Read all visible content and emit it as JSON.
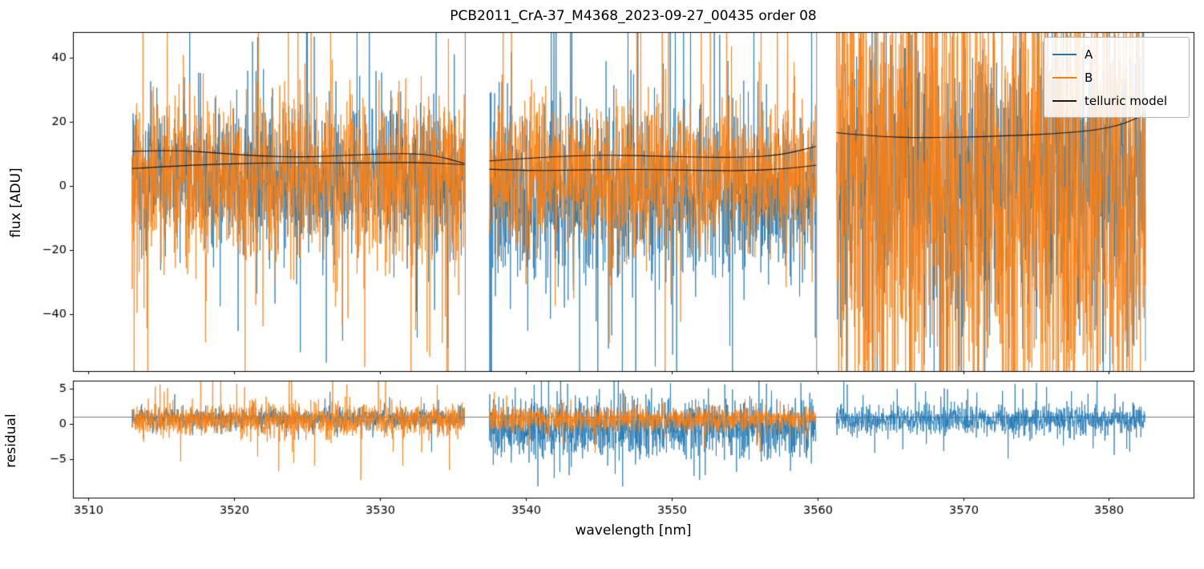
{
  "chart_data": {
    "type": "line",
    "title": "PCB2011_CrA-37_M4368_2023-09-27_00435  order 08",
    "xlabel": "wavelength [nm]",
    "xlim": [
      3508.95,
      3585.8
    ],
    "xticks": [
      3510,
      3520,
      3530,
      3540,
      3550,
      3560,
      3570,
      3580
    ],
    "legend": {
      "position": "upper right",
      "entries": [
        "A",
        "B",
        "telluric model"
      ]
    },
    "series": [
      {
        "name": "A",
        "color": "#1f77b4"
      },
      {
        "name": "B",
        "color": "#ff7f0e"
      },
      {
        "name": "telluric model",
        "color": "#1a1a1a"
      }
    ],
    "top_panel": {
      "ylabel": "flux [ADU]",
      "ylim": [
        -57.8,
        48
      ],
      "yticks": [
        -40,
        -20,
        0,
        20,
        40
      ],
      "edge_lines": [
        3535.85,
        3559.95
      ],
      "edge_line_color": "#808080",
      "segments": [
        {
          "x0": 3513.0,
          "x1": 3535.8,
          "A": {
            "base": 2.5,
            "std": 11.0,
            "tail_p": 0.05,
            "tail_mult": 3.0
          },
          "B": {
            "base": 1.5,
            "std": 13.0,
            "tail_p": 0.06,
            "tail_mult": 3.2
          },
          "telluric": [
            [
              [
                3513,
                10.8
              ],
              [
                3516,
                11.2
              ],
              [
                3519,
                10.2
              ],
              [
                3522,
                9.2
              ],
              [
                3525,
                9.0
              ],
              [
                3528,
                9.6
              ],
              [
                3531,
                10.1
              ],
              [
                3533.5,
                9.9
              ],
              [
                3535.8,
                7.0
              ]
            ],
            [
              [
                3513,
                5.4
              ],
              [
                3516,
                6.2
              ],
              [
                3519,
                6.8
              ],
              [
                3522,
                7.1
              ],
              [
                3525,
                7.2
              ],
              [
                3528,
                7.1
              ],
              [
                3531,
                7.3
              ],
              [
                3533.5,
                7.2
              ],
              [
                3535.8,
                6.6
              ]
            ]
          ]
        },
        {
          "x0": 3537.5,
          "x1": 3559.9,
          "A": {
            "base": -3.0,
            "std": 13.0,
            "tail_p": 0.06,
            "tail_mult": 3.0
          },
          "B": {
            "base": 3.0,
            "std": 11.5,
            "tail_p": 0.05,
            "tail_mult": 3.2
          },
          "telluric": [
            [
              [
                3537.5,
                7.8
              ],
              [
                3540,
                8.6
              ],
              [
                3543,
                9.4
              ],
              [
                3546,
                9.6
              ],
              [
                3549,
                9.3
              ],
              [
                3552,
                8.9
              ],
              [
                3555,
                8.9
              ],
              [
                3557.5,
                9.6
              ],
              [
                3559.9,
                12.3
              ]
            ],
            [
              [
                3537.5,
                5.2
              ],
              [
                3540,
                4.7
              ],
              [
                3543,
                4.9
              ],
              [
                3546,
                5.1
              ],
              [
                3549,
                5.1
              ],
              [
                3552,
                4.8
              ],
              [
                3555,
                4.7
              ],
              [
                3557.5,
                5.2
              ],
              [
                3559.9,
                6.4
              ]
            ]
          ]
        },
        {
          "x0": 3561.3,
          "x1": 3582.5,
          "A": {
            "base": 2.0,
            "std": 21.0,
            "tail_p": 0.06,
            "tail_mult": 2.8
          },
          "B": {
            "base": 0.0,
            "std": 38.0,
            "tail_p": 0.05,
            "tail_mult": 2.5
          },
          "telluric": [
            [
              [
                3561.3,
                16.6
              ],
              [
                3564,
                15.4
              ],
              [
                3567,
                15.0
              ],
              [
                3570,
                15.2
              ],
              [
                3573,
                15.6
              ],
              [
                3576,
                16.2
              ],
              [
                3579,
                17.3
              ],
              [
                3581,
                19.2
              ],
              [
                3582.5,
                22.5
              ]
            ]
          ]
        }
      ]
    },
    "bottom_panel": {
      "ylabel": "residual",
      "ylim": [
        -10.5,
        6.2
      ],
      "yticks": [
        -5,
        0,
        5
      ],
      "hline": 1,
      "hline_color": "#555555",
      "segments": [
        {
          "x0": 3513.0,
          "x1": 3535.8,
          "A": {
            "base": 0.8,
            "std": 0.75,
            "tail_p": 0.04,
            "tail_mult": 3.0
          },
          "B": {
            "base": 0.5,
            "std": 1.15,
            "tail_p": 0.05,
            "tail_mult": 3.2
          }
        },
        {
          "x0": 3537.5,
          "x1": 3559.9,
          "A": {
            "base": -0.6,
            "std": 2.1,
            "tail_p": 0.05,
            "tail_mult": 2.5
          },
          "B": {
            "base": 0.7,
            "std": 0.9,
            "tail_p": 0.04,
            "tail_mult": 3.0
          }
        },
        {
          "x0": 3561.3,
          "x1": 3582.5,
          "A": {
            "base": 0.6,
            "std": 1.0,
            "tail_p": 0.06,
            "tail_mult": 3.2
          },
          "B": null
        }
      ]
    }
  }
}
